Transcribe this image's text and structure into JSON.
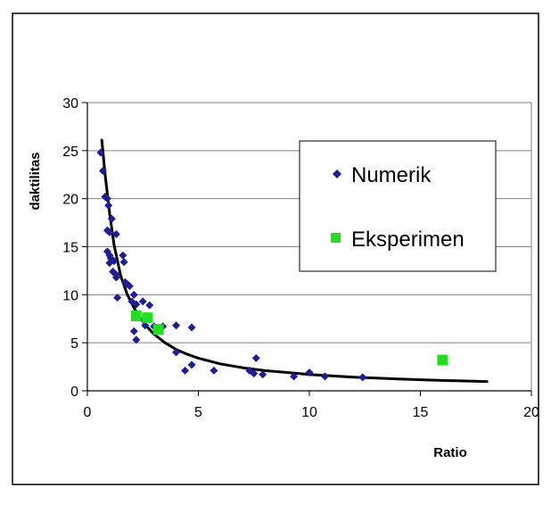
{
  "chart_data": {
    "type": "scatter",
    "title": "",
    "xlabel": "Ratio",
    "ylabel": "daktilitas",
    "xlim": [
      0,
      20
    ],
    "ylim": [
      0,
      30
    ],
    "xticks": [
      0,
      5,
      10,
      15,
      20
    ],
    "yticks": [
      0,
      5,
      10,
      15,
      20,
      25,
      30
    ],
    "grid": "horizontal",
    "legend_position": "right",
    "series": [
      {
        "name": "Numerik",
        "marker": "diamond",
        "color": "#1f1f8f",
        "points": [
          [
            0.6,
            24.8
          ],
          [
            0.7,
            22.9
          ],
          [
            0.8,
            20.2
          ],
          [
            0.9,
            20.0
          ],
          [
            0.95,
            19.3
          ],
          [
            0.9,
            16.7
          ],
          [
            1.0,
            16.5
          ],
          [
            1.1,
            17.9
          ],
          [
            1.3,
            16.3
          ],
          [
            0.9,
            14.5
          ],
          [
            1.0,
            14.1
          ],
          [
            1.05,
            13.8
          ],
          [
            1.0,
            13.3
          ],
          [
            1.2,
            13.5
          ],
          [
            1.15,
            12.4
          ],
          [
            1.3,
            12.1
          ],
          [
            1.3,
            11.8
          ],
          [
            1.6,
            14.1
          ],
          [
            1.65,
            13.4
          ],
          [
            1.7,
            11.3
          ],
          [
            1.8,
            11.1
          ],
          [
            1.9,
            10.9
          ],
          [
            1.35,
            9.7
          ],
          [
            2.0,
            9.3
          ],
          [
            2.1,
            10.0
          ],
          [
            2.2,
            9.0
          ],
          [
            2.5,
            9.3
          ],
          [
            2.8,
            8.9
          ],
          [
            2.1,
            6.2
          ],
          [
            2.2,
            5.3
          ],
          [
            2.6,
            6.8
          ],
          [
            3.0,
            6.7
          ],
          [
            3.4,
            6.7
          ],
          [
            4.0,
            6.8
          ],
          [
            4.7,
            6.6
          ],
          [
            4.0,
            4.0
          ],
          [
            4.7,
            2.7
          ],
          [
            4.4,
            2.1
          ],
          [
            5.7,
            2.1
          ],
          [
            7.3,
            2.1
          ],
          [
            7.5,
            1.8
          ],
          [
            7.9,
            1.7
          ],
          [
            7.6,
            3.4
          ],
          [
            9.3,
            1.5
          ],
          [
            10.0,
            1.9
          ],
          [
            10.7,
            1.5
          ],
          [
            12.4,
            1.4
          ]
        ]
      },
      {
        "name": "Eksperimen",
        "marker": "square",
        "color": "#22dd22",
        "points": [
          [
            2.2,
            7.8
          ],
          [
            2.7,
            7.6
          ],
          [
            3.2,
            6.4
          ],
          [
            16.0,
            3.2
          ]
        ]
      }
    ],
    "trendline": {
      "color": "#000000",
      "points": [
        [
          0.65,
          26.1
        ],
        [
          0.8,
          22.5
        ],
        [
          1.0,
          18.5
        ],
        [
          1.2,
          15.2
        ],
        [
          1.5,
          12.0
        ],
        [
          1.8,
          10.0
        ],
        [
          2.2,
          8.2
        ],
        [
          2.6,
          6.9
        ],
        [
          3.0,
          5.9
        ],
        [
          3.5,
          5.0
        ],
        [
          4.0,
          4.3
        ],
        [
          4.5,
          3.8
        ],
        [
          5.0,
          3.4
        ],
        [
          6.0,
          2.8
        ],
        [
          7.0,
          2.4
        ],
        [
          8.0,
          2.1
        ],
        [
          9.0,
          1.9
        ],
        [
          10.0,
          1.7
        ],
        [
          11.0,
          1.55
        ],
        [
          12.0,
          1.42
        ],
        [
          13.0,
          1.32
        ],
        [
          14.0,
          1.23
        ],
        [
          15.0,
          1.15
        ],
        [
          16.0,
          1.08
        ],
        [
          17.0,
          1.02
        ],
        [
          18.0,
          0.97
        ]
      ]
    }
  }
}
